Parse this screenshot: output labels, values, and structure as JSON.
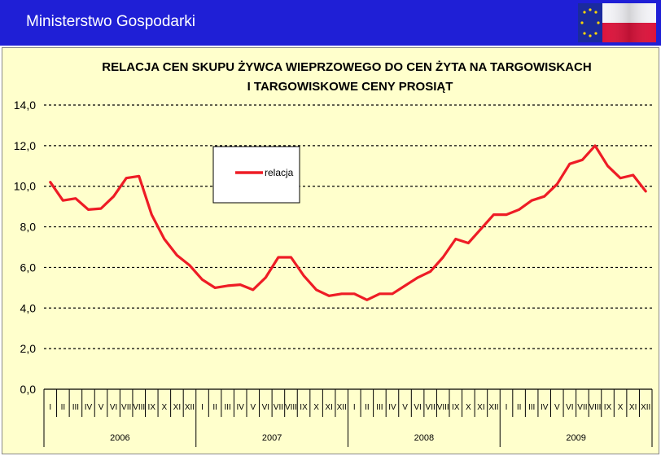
{
  "header": {
    "title": "Ministerstwo Gospodarki",
    "bg_color": "#1f1fd6",
    "flag_icon": "eu-poland-flag-icon"
  },
  "chart_data": {
    "type": "line",
    "title_lines": [
      "RELACJA CEN SKUPU ŻYWCA WIEPRZOWEGO DO CEN ŻYTA NA TARGOWISKACH",
      "I TARGOWISKOWE CENY PROSIĄT"
    ],
    "ylim": [
      0,
      14
    ],
    "y_ticks": [
      "0,0",
      "2,0",
      "4,0",
      "6,0",
      "8,0",
      "10,0",
      "12,0",
      "14,0"
    ],
    "grid": "horizontal dashed",
    "background_color": "#ffffcc",
    "months": [
      "I",
      "II",
      "III",
      "IV",
      "V",
      "VI",
      "VII",
      "VIII",
      "IX",
      "X",
      "XI",
      "XII"
    ],
    "years": [
      "2006",
      "2007",
      "2008",
      "2009"
    ],
    "legend_position": "top-left",
    "series": [
      {
        "name": "relacja",
        "color": "#ee1c25",
        "values": [
          10.2,
          9.3,
          9.4,
          8.85,
          8.9,
          9.5,
          10.4,
          10.5,
          8.6,
          7.4,
          6.6,
          6.1,
          5.4,
          5.0,
          5.1,
          5.15,
          4.9,
          5.5,
          6.5,
          6.5,
          5.6,
          4.9,
          4.6,
          4.7,
          4.7,
          4.4,
          4.7,
          4.7,
          5.1,
          5.5,
          5.8,
          6.5,
          7.4,
          7.2,
          7.9,
          8.6,
          8.6,
          8.85,
          9.3,
          9.5,
          10.1,
          11.1,
          11.3,
          12.0,
          11.0,
          10.4,
          10.55,
          9.75
        ]
      }
    ]
  }
}
